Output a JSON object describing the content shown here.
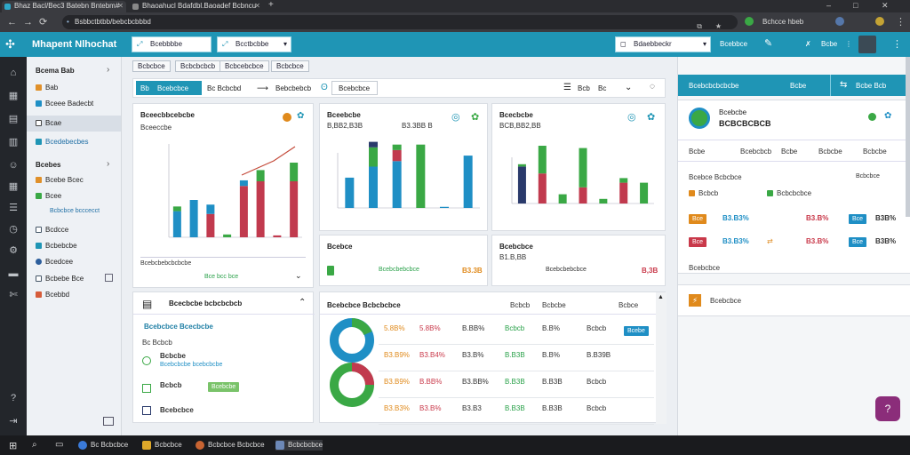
{
  "browser": {
    "tabs": [
      {
        "label": "Bhaz Bacl/Bec3 Batebn Bntebm#"
      },
      {
        "label": "Bhaoahucl Bdafdbl.Baoadef Bcbncu"
      }
    ],
    "new_tab": "+",
    "url": "Bsbbctbtbb/bebcbcbbbd",
    "profile_label": "Bchcce hbeb",
    "window_controls": [
      "–",
      "□",
      "✕"
    ]
  },
  "app": {
    "title": "Mhapent Nlhochat",
    "filter_left": "Bcebbbbe",
    "filter_mid": "Bcctbcbbe",
    "select_right": "Bdaebbeckr",
    "hdr_link1": "Bcebbce",
    "hdr_link2": "Bcbe"
  },
  "leftnav": {
    "section1": "Bcema Bab",
    "items1": [
      "Bab",
      "Bceee Badecbt",
      "Bcae",
      "Bcedebecbes"
    ],
    "section2": "Bcebes",
    "items2": [
      "Bcebe Bcec",
      "Bcee",
      "Bcbcbce bcccecct"
    ],
    "items3": [
      "Bcdcce",
      "Bcbebcbe",
      "Bcedcee",
      "Bcbebe Bce",
      "Bcebbd"
    ]
  },
  "main": {
    "tabs": [
      "Bcbcbce",
      "Bcbcbcbcb",
      "Bcbcebcbce",
      "Bcbcbce"
    ],
    "subtabs": [
      "Bb",
      "Bcebcbce",
      "Bc Bcbcbd",
      "Bebcbebcb",
      "Bcebcbce"
    ],
    "view_label": "Bcb",
    "view_count": "Bc",
    "cards": [
      {
        "title": "Bceecbbcebcbe",
        "sub": "Bceeccbe",
        "footer": "Bcebcbebcbcbcbe",
        "foot_values": [
          "Bce bcc bce"
        ]
      },
      {
        "title": "Bceebcbe",
        "sub": "B,BB2,B3B",
        "sub2": "B3.3BB B"
      },
      {
        "title": "Bcecbcbe",
        "sub": "BCB,BB2,BB"
      },
      {
        "title": "Bcebce",
        "sub": "",
        "foot": "Bcebcbebcbce",
        "foot_val": "B3.3B"
      },
      {
        "title": "Bcebcbce",
        "sub": "B1.B,BB"
      },
      {
        "title": "Bcebce",
        "sub": "Bcebcbebcbce",
        "val": "B,3B"
      }
    ],
    "lower_left": {
      "title": "Bcecbcbe bcbcbcbcb",
      "sub": "Bcebcbce Bcecbcbe",
      "label": "Bc Bcbcb",
      "items": [
        {
          "name": "Bcbcbe",
          "sub": "Bcebcbcbe bcebcbcbe"
        },
        {
          "name": "Bcbcb",
          "sub": "Bcebcbe"
        },
        {
          "name": "Bcebcbce",
          "sub": ""
        }
      ]
    },
    "lower_right": {
      "title": "Bcebcbce Bcbcbcbce",
      "col_head": [
        "Bcbcb",
        "Bcbcbe",
        "Bcbce"
      ],
      "tag": "Bcebe",
      "rows": [
        {
          "a": "5.8B%",
          "b": "5.8B%",
          "c": "B.BB%",
          "d": "Bcbcb",
          "e": "B.B%",
          "f": "Bcbcb"
        },
        {
          "a": "B3.B9%",
          "b": "B3.B4%",
          "c": "B3.B%",
          "d": "B.B3B",
          "e": "B.B%",
          "f": "B.B39B"
        },
        {
          "a": "B3.B9%",
          "b": "B.BB%",
          "c": "B3.BB%",
          "d": "B.B3B",
          "e": "B.B3B",
          "f": "Bcbcb"
        },
        {
          "a": "B3.B3%",
          "b": "B3.B%",
          "c": "B3.B3",
          "d": "B.B3B",
          "e": "B.B3B",
          "f": "Bcbcb"
        }
      ]
    }
  },
  "rightpanel": {
    "btn1": "Bcebcbcbcbcbe",
    "btn2": "Bcbe",
    "btn3": "Bcbe Bcb",
    "title": "Bcebcbe",
    "subtitle": "BCBCBCBCB",
    "tabs": [
      "Bcbe",
      "Bcebcbcb",
      "Bcbe",
      "Bcbcbe",
      "Bcbcbe"
    ],
    "section": "Bcebce Bcbcbce",
    "col1": "Bcbcb",
    "col2": "Bcbcbcbce",
    "col3": "Bcbcbce",
    "rows": [
      {
        "tag": "Bce",
        "v1": "B3.B3%",
        "v2": "B3.B%",
        "tag2": "Bce",
        "v3": "B3B%"
      },
      {
        "tag": "Bce",
        "v1": "B3.B3%",
        "v2": "B3.B%",
        "tag2": "Bce",
        "v3": "B3B%"
      }
    ],
    "foot": "Bcebcbce",
    "item": "Bcebcbce"
  },
  "taskbar": {
    "items": [
      "Bc Bcbcbce",
      "Bcbcbce",
      "Bcbcbce Bcbcbce",
      "Bcbcbcbce"
    ]
  },
  "colors": {
    "teal": "#1f95b5",
    "green": "#3aa845",
    "red": "#c13a4e",
    "blue": "#1f8fc5",
    "navy": "#2a3a6b",
    "orange": "#e08a1c"
  }
}
